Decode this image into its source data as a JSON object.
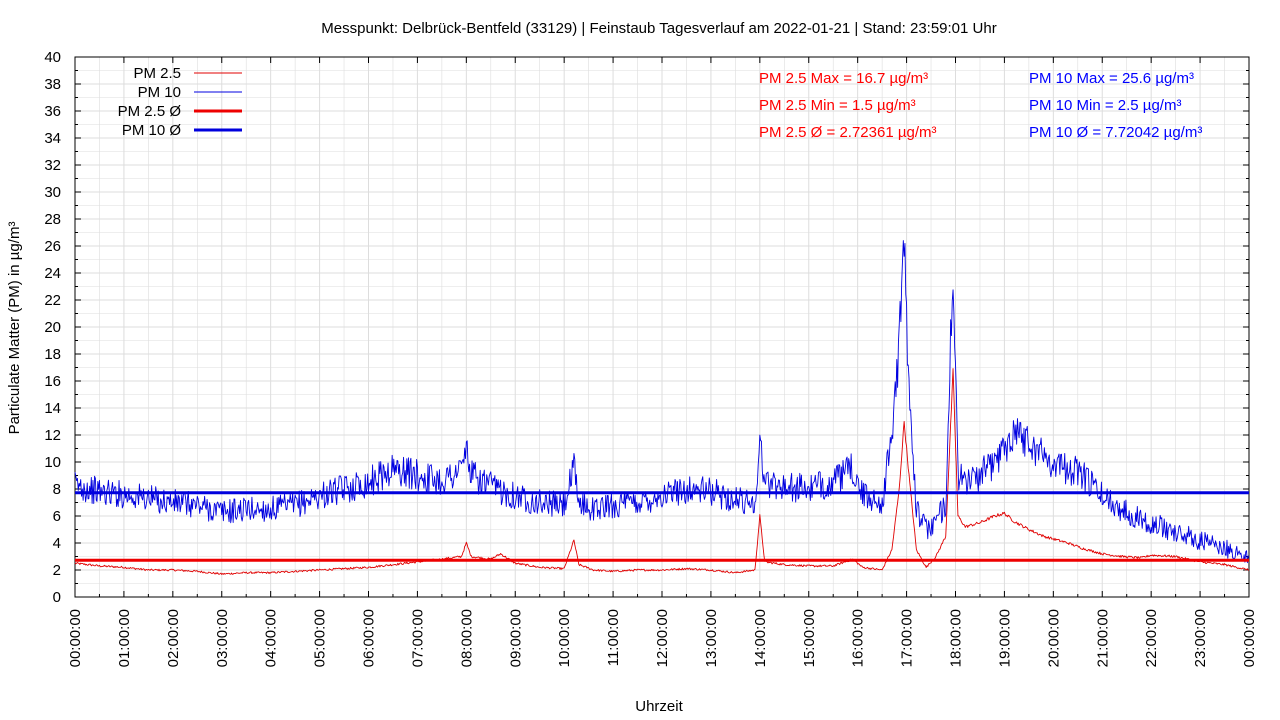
{
  "chart_data": {
    "type": "line",
    "title": "Messpunkt: Delbrück-Bentfeld (33129) | Feinstaub Tagesverlauf am 2022-01-21 | Stand: 23:59:01 Uhr",
    "xlabel": "Uhrzeit",
    "ylabel": "Particulate Matter (PM) in µg/m³",
    "ylim": [
      0,
      40
    ],
    "y_ticks": [
      0,
      2,
      4,
      6,
      8,
      10,
      12,
      14,
      16,
      18,
      20,
      22,
      24,
      26,
      28,
      30,
      32,
      34,
      36,
      38,
      40
    ],
    "xlim_hours": [
      0,
      24
    ],
    "x_tick_labels": [
      "00:00:00",
      "01:00:00",
      "02:00:00",
      "03:00:00",
      "04:00:00",
      "05:00:00",
      "06:00:00",
      "07:00:00",
      "08:00:00",
      "09:00:00",
      "10:00:00",
      "11:00:00",
      "12:00:00",
      "13:00:00",
      "14:00:00",
      "15:00:00",
      "16:00:00",
      "17:00:00",
      "18:00:00",
      "19:00:00",
      "20:00:00",
      "21:00:00",
      "22:00:00",
      "23:00:00",
      "00:00:00"
    ],
    "grid": true,
    "legend_position": "top-left",
    "series": [
      {
        "name": "PM 2.5",
        "color": "#e00000",
        "x_hours": [
          0,
          0.5,
          1,
          1.5,
          2,
          2.5,
          3,
          3.5,
          4,
          4.5,
          5,
          5.5,
          6,
          6.5,
          7,
          7.5,
          7.9,
          8.0,
          8.1,
          8.5,
          8.7,
          9,
          9.5,
          10,
          10.2,
          10.3,
          10.6,
          11,
          11.5,
          12,
          12.5,
          13,
          13.5,
          13.9,
          14.0,
          14.1,
          14.5,
          15,
          15.5,
          15.9,
          16.1,
          16.5,
          16.7,
          16.85,
          16.95,
          17.05,
          17.2,
          17.4,
          17.6,
          17.8,
          17.95,
          18.05,
          18.2,
          18.5,
          18.8,
          19.0,
          19.2,
          19.5,
          19.8,
          20.0,
          20.3,
          20.6,
          21.0,
          21.4,
          21.8,
          22.0,
          22.5,
          23.0,
          23.5,
          24.0
        ],
        "values": [
          2.5,
          2.3,
          2.2,
          2.0,
          2.0,
          1.9,
          1.7,
          1.8,
          1.8,
          1.9,
          2.0,
          2.1,
          2.2,
          2.4,
          2.6,
          2.8,
          3.0,
          4.0,
          3.0,
          2.8,
          3.2,
          2.5,
          2.2,
          2.1,
          4.2,
          2.4,
          2.0,
          1.9,
          2.0,
          2.0,
          2.1,
          2.0,
          1.8,
          2.0,
          6.0,
          2.6,
          2.4,
          2.3,
          2.3,
          2.8,
          2.2,
          2.0,
          3.5,
          8.0,
          13.0,
          9.0,
          3.5,
          2.2,
          3.0,
          4.5,
          16.7,
          6.0,
          5.2,
          5.5,
          6.0,
          6.2,
          5.6,
          5.0,
          4.5,
          4.3,
          4.0,
          3.6,
          3.2,
          3.0,
          2.9,
          3.1,
          3.0,
          2.6,
          2.4,
          2.0
        ]
      },
      {
        "name": "PM 10",
        "color": "#0000e0",
        "x_hours": [
          0,
          0.5,
          1,
          1.5,
          2,
          2.5,
          3,
          3.5,
          4,
          4.5,
          5,
          5.5,
          6,
          6.5,
          7,
          7.5,
          7.9,
          8.0,
          8.1,
          8.5,
          9,
          9.5,
          10,
          10.2,
          10.3,
          10.6,
          11,
          11.5,
          12,
          12.5,
          13,
          13.5,
          13.9,
          14.0,
          14.1,
          14.5,
          15,
          15.5,
          15.9,
          16.1,
          16.5,
          16.7,
          16.85,
          16.95,
          17.05,
          17.2,
          17.4,
          17.6,
          17.8,
          17.95,
          18.05,
          18.2,
          18.5,
          18.8,
          19.0,
          19.2,
          19.5,
          19.8,
          20.0,
          20.3,
          20.6,
          21.0,
          21.4,
          21.8,
          22.0,
          22.5,
          23.0,
          23.5,
          24.0
        ],
        "values": [
          8.3,
          7.8,
          7.6,
          7.3,
          7.0,
          6.8,
          6.3,
          6.5,
          6.5,
          6.8,
          7.5,
          8.0,
          8.5,
          9.5,
          9.0,
          8.6,
          9.5,
          11.0,
          9.0,
          8.2,
          7.5,
          7.0,
          6.8,
          9.5,
          7.0,
          6.5,
          6.8,
          7.0,
          7.5,
          8.0,
          7.8,
          7.2,
          7.0,
          11.5,
          8.5,
          8.2,
          8.0,
          8.5,
          9.5,
          7.5,
          7.0,
          12.0,
          19.0,
          25.6,
          16.0,
          6.5,
          5.0,
          5.5,
          7.0,
          24.5,
          9.0,
          8.5,
          9.0,
          10.0,
          11.0,
          12.5,
          11.5,
          10.5,
          10.0,
          9.5,
          9.0,
          7.5,
          6.5,
          5.8,
          5.5,
          4.8,
          4.2,
          3.6,
          3.0
        ]
      }
    ],
    "averages": [
      {
        "name": "PM 2.5 Ø",
        "value": 2.72361,
        "color": "#ee0000"
      },
      {
        "name": "PM 10 Ø",
        "value": 7.72042,
        "color": "#0000dd"
      }
    ],
    "legend": [
      {
        "label": "PM 2.5",
        "color": "#e00000",
        "weight": "thin"
      },
      {
        "label": "PM 10",
        "color": "#0000e0",
        "weight": "thin"
      },
      {
        "label": "PM 2.5 Ø",
        "color": "#ee0000",
        "weight": "thick"
      },
      {
        "label": "PM 10 Ø",
        "color": "#0000dd",
        "weight": "thick"
      }
    ],
    "annotations": {
      "pm25_max": "PM 2.5 Max = 16.7 µg/m³",
      "pm25_min": "PM 2.5 Min = 1.5 µg/m³",
      "pm25_avg": "PM 2.5 Ø = 2.72361 µg/m³",
      "pm10_max": "PM 10 Max = 25.6 µg/m³",
      "pm10_min": "PM 10 Min = 2.5 µg/m³",
      "pm10_avg": "PM 10 Ø = 7.72042 µg/m³"
    }
  }
}
